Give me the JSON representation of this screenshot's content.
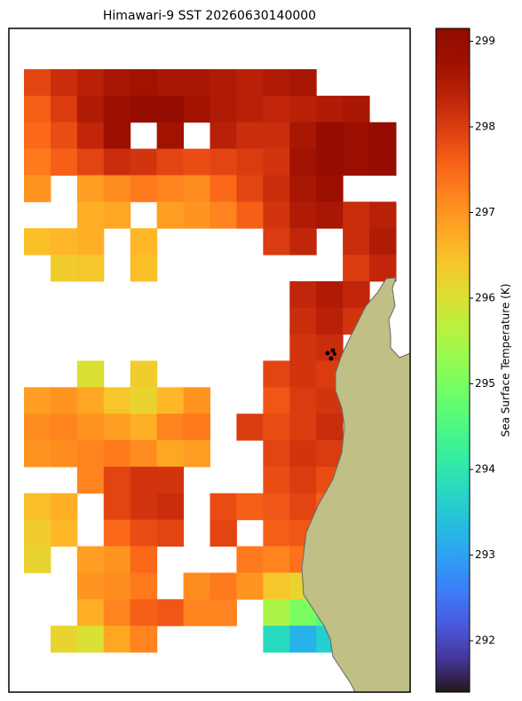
{
  "chart_data": {
    "type": "heatmap",
    "title": "Himawari-9 SST 20260630140000",
    "colorbar_label": "Sea Surface Temperature (K)",
    "colormap": "turbo",
    "clim": [
      291.4,
      299.15
    ],
    "cticks": [
      292,
      293,
      294,
      295,
      296,
      297,
      298,
      299
    ],
    "values": [
      [
        297.9,
        298.2,
        298.4,
        298.6,
        298.7,
        298.6,
        298.6,
        298.5,
        298.4,
        298.5,
        298.6,
        null,
        null,
        null
      ],
      [
        297.6,
        298.0,
        298.5,
        298.8,
        298.9,
        298.9,
        298.7,
        298.5,
        298.4,
        298.3,
        298.4,
        298.5,
        298.6,
        null
      ],
      [
        297.5,
        297.8,
        298.3,
        298.8,
        null,
        298.7,
        null,
        298.4,
        298.2,
        298.2,
        298.6,
        298.9,
        298.8,
        298.9
      ],
      [
        297.3,
        297.6,
        297.9,
        298.2,
        298.1,
        297.9,
        297.8,
        297.9,
        298.0,
        298.1,
        298.7,
        298.9,
        298.8,
        298.9
      ],
      [
        297.0,
        null,
        296.9,
        297.1,
        297.3,
        297.2,
        297.1,
        297.5,
        297.9,
        298.2,
        298.6,
        298.8,
        null,
        null
      ],
      [
        null,
        null,
        296.7,
        296.8,
        null,
        296.9,
        297.0,
        297.2,
        297.6,
        298.1,
        298.5,
        298.6,
        298.2,
        298.4
      ],
      [
        296.5,
        296.6,
        296.7,
        null,
        296.6,
        null,
        null,
        null,
        null,
        298.0,
        298.3,
        null,
        298.2,
        298.5
      ],
      [
        null,
        296.3,
        296.4,
        null,
        296.5,
        null,
        null,
        null,
        null,
        null,
        null,
        null,
        298.0,
        298.3
      ],
      [
        null,
        null,
        null,
        null,
        null,
        null,
        null,
        null,
        null,
        null,
        298.3,
        298.5,
        298.3,
        null
      ],
      [
        null,
        null,
        null,
        null,
        null,
        null,
        null,
        null,
        null,
        null,
        298.2,
        298.4,
        298.1,
        null
      ],
      [
        null,
        null,
        null,
        null,
        null,
        null,
        null,
        null,
        null,
        null,
        298.1,
        298.2,
        null,
        null
      ],
      [
        null,
        null,
        296.0,
        null,
        296.3,
        null,
        null,
        null,
        null,
        297.9,
        298.1,
        298.0,
        null,
        null
      ],
      [
        296.9,
        297.0,
        296.8,
        296.4,
        296.2,
        296.6,
        297.0,
        null,
        null,
        297.7,
        298.0,
        298.1,
        null,
        null
      ],
      [
        297.1,
        297.2,
        297.0,
        296.9,
        296.7,
        297.2,
        297.3,
        null,
        298.0,
        297.8,
        298.0,
        298.2,
        null,
        null
      ],
      [
        297.0,
        297.1,
        297.2,
        297.3,
        297.1,
        296.8,
        296.9,
        null,
        null,
        297.9,
        298.1,
        298.0,
        null,
        null
      ],
      [
        null,
        null,
        297.2,
        297.9,
        298.1,
        298.1,
        null,
        null,
        null,
        297.8,
        298.0,
        297.8,
        null,
        null
      ],
      [
        296.5,
        296.7,
        null,
        297.9,
        298.1,
        298.2,
        null,
        297.8,
        297.6,
        297.7,
        297.9,
        297.6,
        null,
        null
      ],
      [
        296.3,
        296.6,
        null,
        297.5,
        297.8,
        297.9,
        null,
        297.9,
        null,
        297.6,
        297.7,
        null,
        null,
        null
      ],
      [
        296.2,
        null,
        296.9,
        297.0,
        297.5,
        null,
        null,
        null,
        297.3,
        297.2,
        297.4,
        null,
        null,
        null
      ],
      [
        null,
        null,
        297.0,
        297.1,
        297.3,
        null,
        297.1,
        297.3,
        297.0,
        296.4,
        296.2,
        null,
        null,
        null
      ],
      [
        null,
        null,
        296.7,
        297.2,
        297.6,
        297.7,
        297.2,
        297.2,
        null,
        295.5,
        295.0,
        294.6,
        null,
        null
      ],
      [
        null,
        296.2,
        296.0,
        296.8,
        297.2,
        null,
        null,
        null,
        null,
        293.8,
        293.2,
        293.6,
        null,
        null
      ]
    ]
  }
}
